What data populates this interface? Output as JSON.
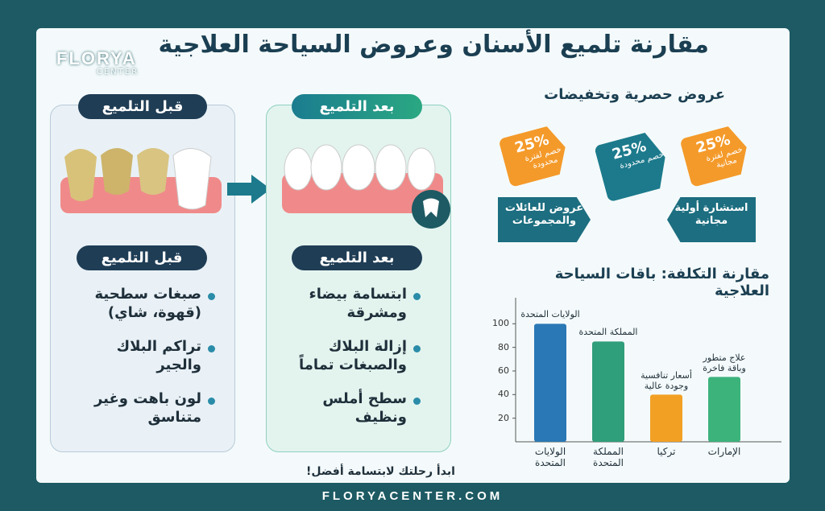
{
  "header": {
    "title": "مقارنة تلميع الأسنان وعروض السياحة العلاجية",
    "logo": "FLORYA",
    "logo_sub": "CENTER"
  },
  "before": {
    "badge": "قبل التلميع",
    "heading": "قبل التلميع",
    "items": [
      "صبغات سطحية (قهوة، شاي)",
      "تراكم البلاك والجير",
      "لون باهت وغير متناسق"
    ]
  },
  "after": {
    "badge": "بعد التلميع",
    "heading": "بعد التلميع",
    "items": [
      "ابتسامة بيضاء ومشرقة",
      "إزالة البلاك والصبغات تماماً",
      "سطح أملس ونظيف"
    ]
  },
  "offers": {
    "title": "عروض حصرية وتخفيضات",
    "tags": [
      {
        "percent": "25%",
        "text": "خصم لفترة مجانية"
      },
      {
        "percent": "25%",
        "text": "خصم محدودة"
      },
      {
        "percent": "25%",
        "text": "خصم لفترة محدودة"
      }
    ],
    "labels": [
      "استشارة أولية مجانية",
      "عروض للعائلات والمجموعات"
    ]
  },
  "chart_data": {
    "type": "bar",
    "title": "مقارنة التكلفة: باقات السياحة العلاجية",
    "categories": [
      "الولايات المتحدة",
      "المملكة المتحدة",
      "تركيا",
      "الإمارات"
    ],
    "values": [
      100,
      85,
      40,
      55
    ],
    "annotations": [
      "الولايات المتحدة",
      "المملكة المتحدة",
      "أسعار تنافسية وجودة عالية",
      "علاج متطور وباقة فاخرة"
    ],
    "colors": [
      "#2a78b5",
      "#2f9e7a",
      "#f2a024",
      "#3db37c"
    ],
    "ylim": [
      0,
      120
    ],
    "yticks": [
      20,
      40,
      60,
      80,
      100
    ]
  },
  "footer": {
    "slogan": "ابدأ رحلتك لابتسامة أفضل!",
    "url": "FLORYACENTER.COM"
  }
}
